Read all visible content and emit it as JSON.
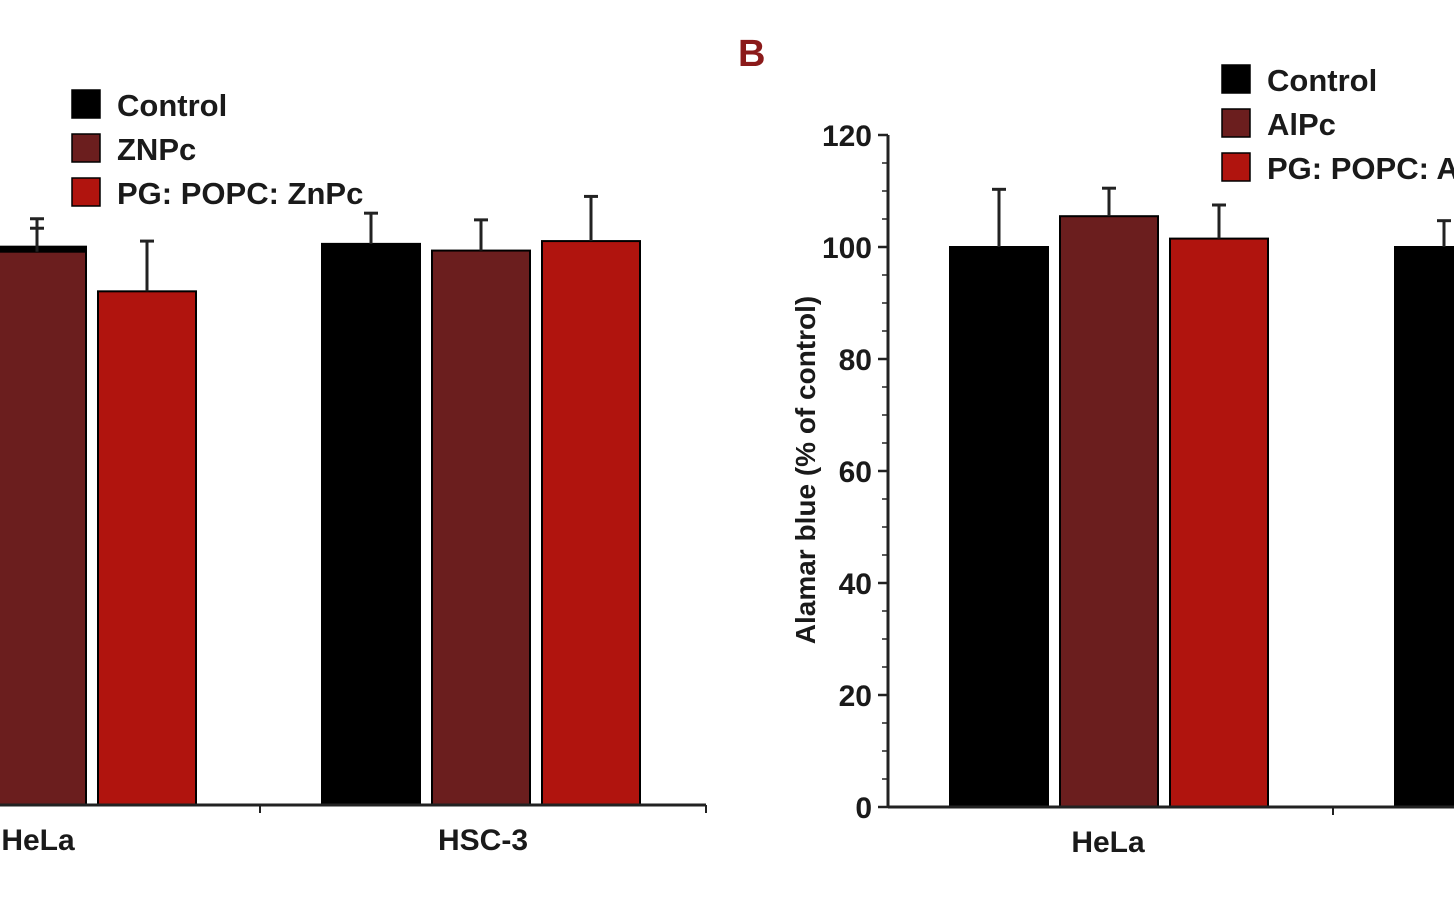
{
  "colors": {
    "control": "#000000",
    "pc": "#6b1e1e",
    "liposome": "#b0140e",
    "axis": "#222222",
    "panel_letter": "#8b1a1a"
  },
  "chart_data": [
    {
      "type": "bar",
      "panel": "",
      "categories": [
        "HeLa",
        "HSC-3"
      ],
      "series": [
        {
          "name": "Control",
          "values": [
            100,
            100.5
          ],
          "errors": [
            5,
            5.5
          ]
        },
        {
          "name": "ZNPc",
          "values": [
            99.1,
            99.3
          ],
          "errors": [
            4.2,
            5.5
          ]
        },
        {
          "name": "PG: POPC: ZnPc",
          "values": [
            92.0,
            101.0
          ],
          "errors": [
            9.0,
            8.0
          ]
        }
      ],
      "ylim": [
        0,
        120
      ],
      "ylabel": "",
      "xlabel": "",
      "legend": "top-left"
    },
    {
      "type": "bar",
      "panel": "B",
      "categories": [
        "HeLa",
        ""
      ],
      "series": [
        {
          "name": "Control",
          "values": [
            100,
            100
          ],
          "errors": [
            10.3,
            4.7
          ]
        },
        {
          "name": "AlPc",
          "values": [
            105.5,
            null
          ],
          "errors": [
            5.0,
            null
          ]
        },
        {
          "name": "PG: POPC: AlPc",
          "values": [
            101.5,
            null
          ],
          "errors": [
            6.0,
            null
          ]
        }
      ],
      "ylim": [
        0,
        120
      ],
      "yticks": [
        0,
        20,
        40,
        60,
        80,
        100,
        120
      ],
      "ylabel": "Alamar blue (% of control)",
      "xlabel": "",
      "legend": "top-right"
    }
  ]
}
